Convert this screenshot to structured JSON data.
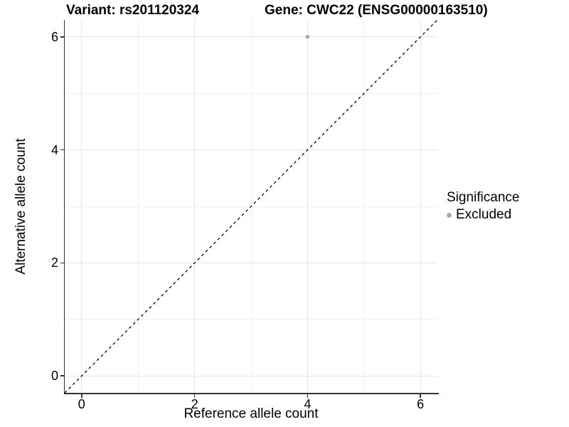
{
  "chart_data": {
    "type": "scatter",
    "titles": {
      "left": "Variant: rs201120324",
      "right": "Gene: CWC22 (ENSG00000163510)"
    },
    "xlabel": "Reference allele count",
    "ylabel": "Alternative allele count",
    "xlim": [
      -0.3,
      6.3
    ],
    "ylim": [
      -0.3,
      6.3
    ],
    "x_ticks": [
      0,
      2,
      4,
      6
    ],
    "y_ticks": [
      0,
      2,
      4,
      6
    ],
    "x_minor_gridlines": [
      1,
      3,
      5
    ],
    "y_minor_gridlines": [
      1,
      3,
      5
    ],
    "grid": "on",
    "series": [
      {
        "name": "Excluded",
        "color": "#aaaaaa",
        "points": [
          {
            "x": 4,
            "y": 6
          }
        ]
      }
    ],
    "identity_line": {
      "from": [
        -0.3,
        -0.3
      ],
      "to": [
        6.3,
        6.3
      ],
      "style": "dashed",
      "color": "#000000"
    },
    "legend": {
      "title": "Significance",
      "position": "right",
      "items": [
        {
          "label": "Excluded",
          "color": "#aaaaaa",
          "marker": "circle"
        }
      ]
    },
    "colors": {
      "background": "#ffffff",
      "grid_major": "#e5e5e5",
      "grid_minor": "#f0f0f0",
      "axis_line": "#333333",
      "text": "#000000"
    }
  }
}
